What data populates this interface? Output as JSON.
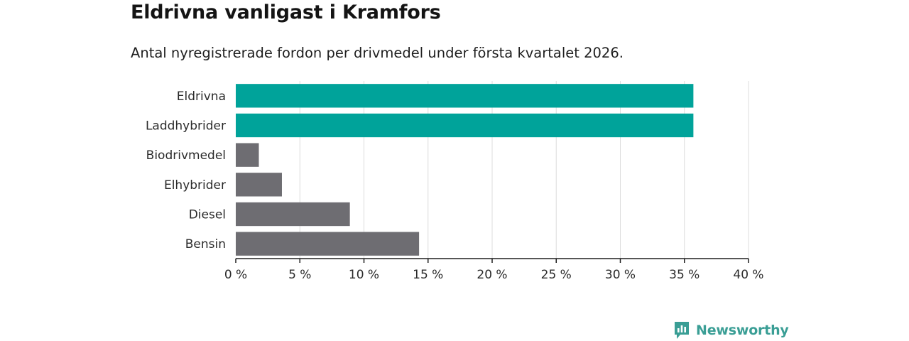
{
  "header": {
    "title": "Eldrivna vanligast i Kramfors",
    "subtitle": "Antal nyregistrerade fordon per drivmedel under första kvartalet 2026."
  },
  "branding": {
    "logo_text": "Newsworthy",
    "logo_icon": "bar-chart-speech-bubble-icon",
    "color": "#3a9e95"
  },
  "chart_data": {
    "type": "bar",
    "orientation": "horizontal",
    "title": "Eldrivna vanligast i Kramfors",
    "subtitle": "Antal nyregistrerade fordon per drivmedel under första kvartalet 2026.",
    "categories": [
      "Eldrivna",
      "Laddhybrider",
      "Biodrivmedel",
      "Elhybrider",
      "Diesel",
      "Bensin"
    ],
    "values": [
      35.7,
      35.7,
      1.8,
      3.6,
      8.9,
      14.3
    ],
    "colors": [
      "#00a39a",
      "#00a39a",
      "#6e6d72",
      "#6e6d72",
      "#6e6d72",
      "#6e6d72"
    ],
    "xlabel": "",
    "ylabel": "",
    "xlim": [
      0,
      40
    ],
    "xticks": [
      0,
      5,
      10,
      15,
      20,
      25,
      30,
      35,
      40
    ],
    "xtick_labels": [
      "0 %",
      "5 %",
      "10 %",
      "15 %",
      "20 %",
      "25 %",
      "30 %",
      "35 %",
      "40 %"
    ],
    "grid": true,
    "gridline_color": "#dcdcdc",
    "axis_color": "#1f1f1f"
  }
}
